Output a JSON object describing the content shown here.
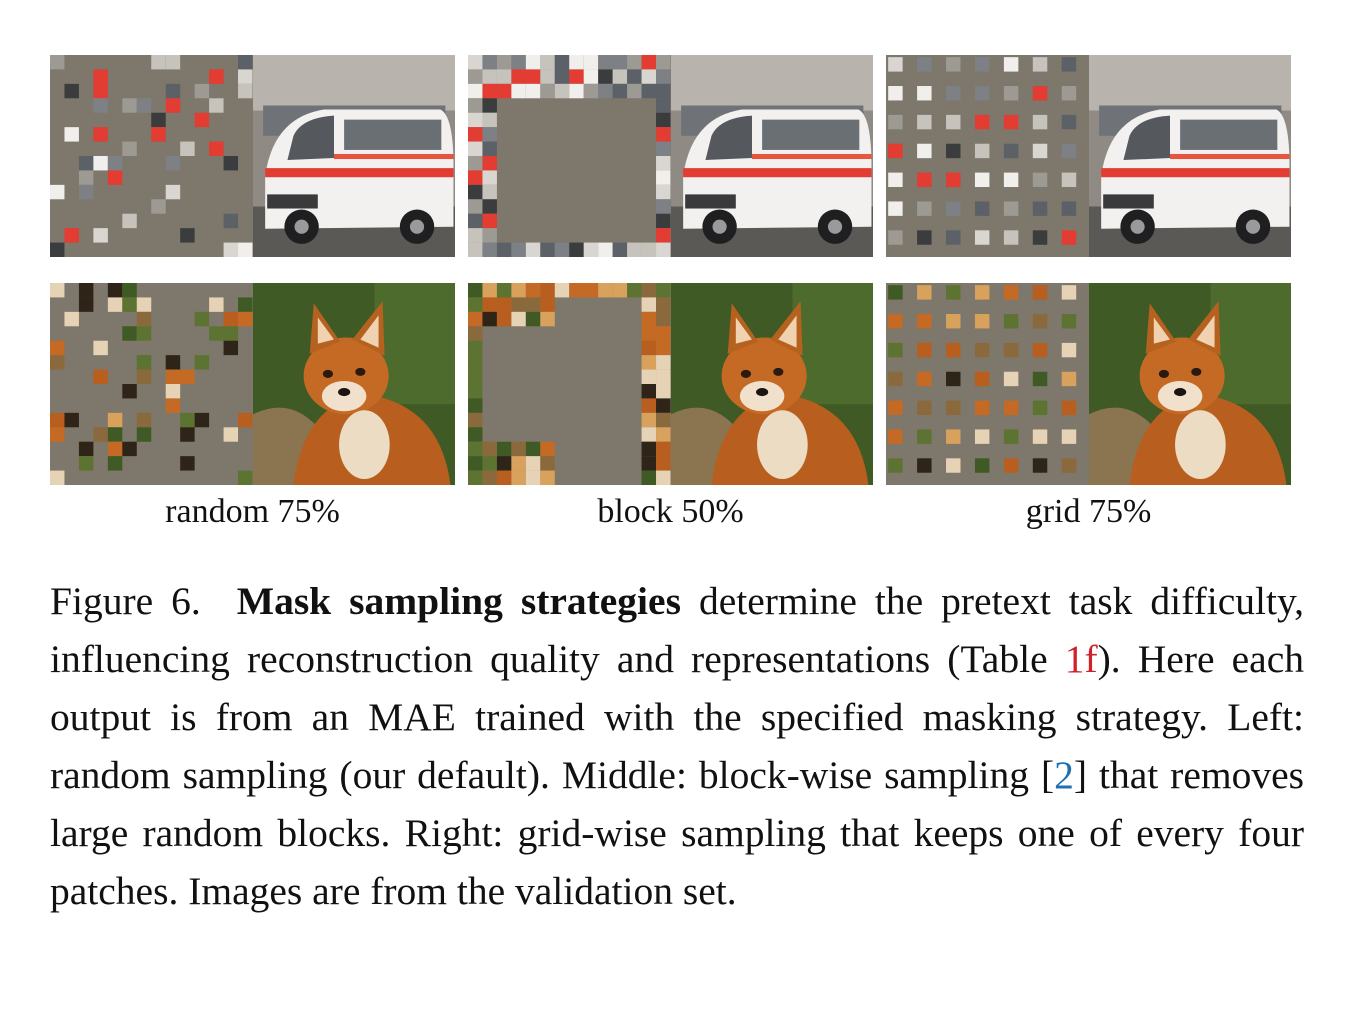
{
  "figure": {
    "row_images": [
      "ambulance",
      "fox"
    ],
    "columns": [
      {
        "strategy": "random",
        "label": "random 75%"
      },
      {
        "strategy": "block",
        "label": "block 50%"
      },
      {
        "strategy": "grid",
        "label": "grid 75%"
      }
    ],
    "mask_color": "#7e776b"
  },
  "caption": {
    "figure_label": "Figure 6.",
    "bold_title": "Mask sampling strategies",
    "text_1": " determine the pretext task difficulty, influencing reconstruction quality and representations (Table ",
    "ref_table": "1f",
    "text_2": "). Here each output is from an MAE trained with the specified masking strategy. Left: random sampling (our default). Middle: block-wise sampling [",
    "ref_cite": "2",
    "text_3": "] that removes large random blocks. Right: grid-wise sampling that keeps one of every four patches. Images are from the validation set."
  }
}
